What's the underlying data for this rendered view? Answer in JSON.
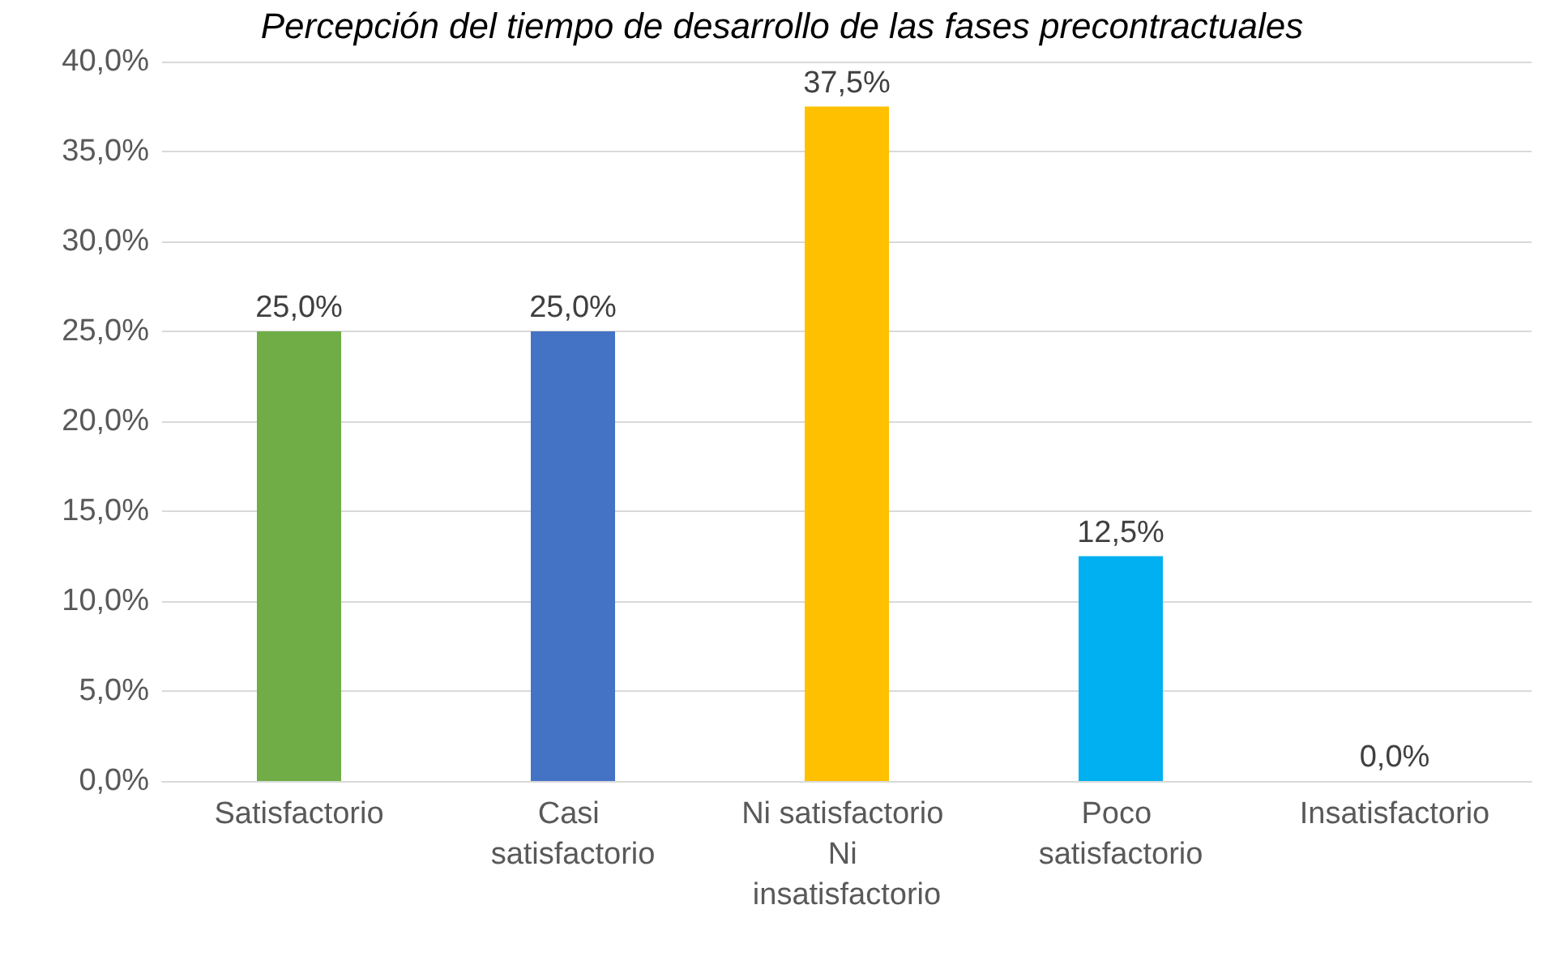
{
  "chart_data": {
    "type": "bar",
    "title": "Percepción del tiempo de desarrollo de las fases precontractuales",
    "categories": [
      "Satisfactorio",
      "Casi satisfactorio",
      "Ni satisfactorio Ni insatisfactorio",
      "Poco satisfactorio",
      "Insatisfactorio"
    ],
    "values": [
      25.0,
      25.0,
      37.5,
      12.5,
      0.0
    ],
    "colors": [
      "#70ad47",
      "#4472c4",
      "#ffc000",
      "#00b0f0",
      "#a5a5a5"
    ],
    "value_labels": [
      "25,0%",
      "25,0%",
      "37,5%",
      "12,5%",
      "0,0%"
    ],
    "ylim": [
      0,
      40
    ],
    "yticks": [
      {
        "value": 0,
        "label": "0,0%"
      },
      {
        "value": 5,
        "label": "5,0%"
      },
      {
        "value": 10,
        "label": "10,0%"
      },
      {
        "value": 15,
        "label": "15,0%"
      },
      {
        "value": 20,
        "label": "20,0%"
      },
      {
        "value": 25,
        "label": "25,0%"
      },
      {
        "value": 30,
        "label": "30,0%"
      },
      {
        "value": 35,
        "label": "35,0%"
      },
      {
        "value": 40,
        "label": "40,0%"
      }
    ],
    "grid": "y"
  }
}
